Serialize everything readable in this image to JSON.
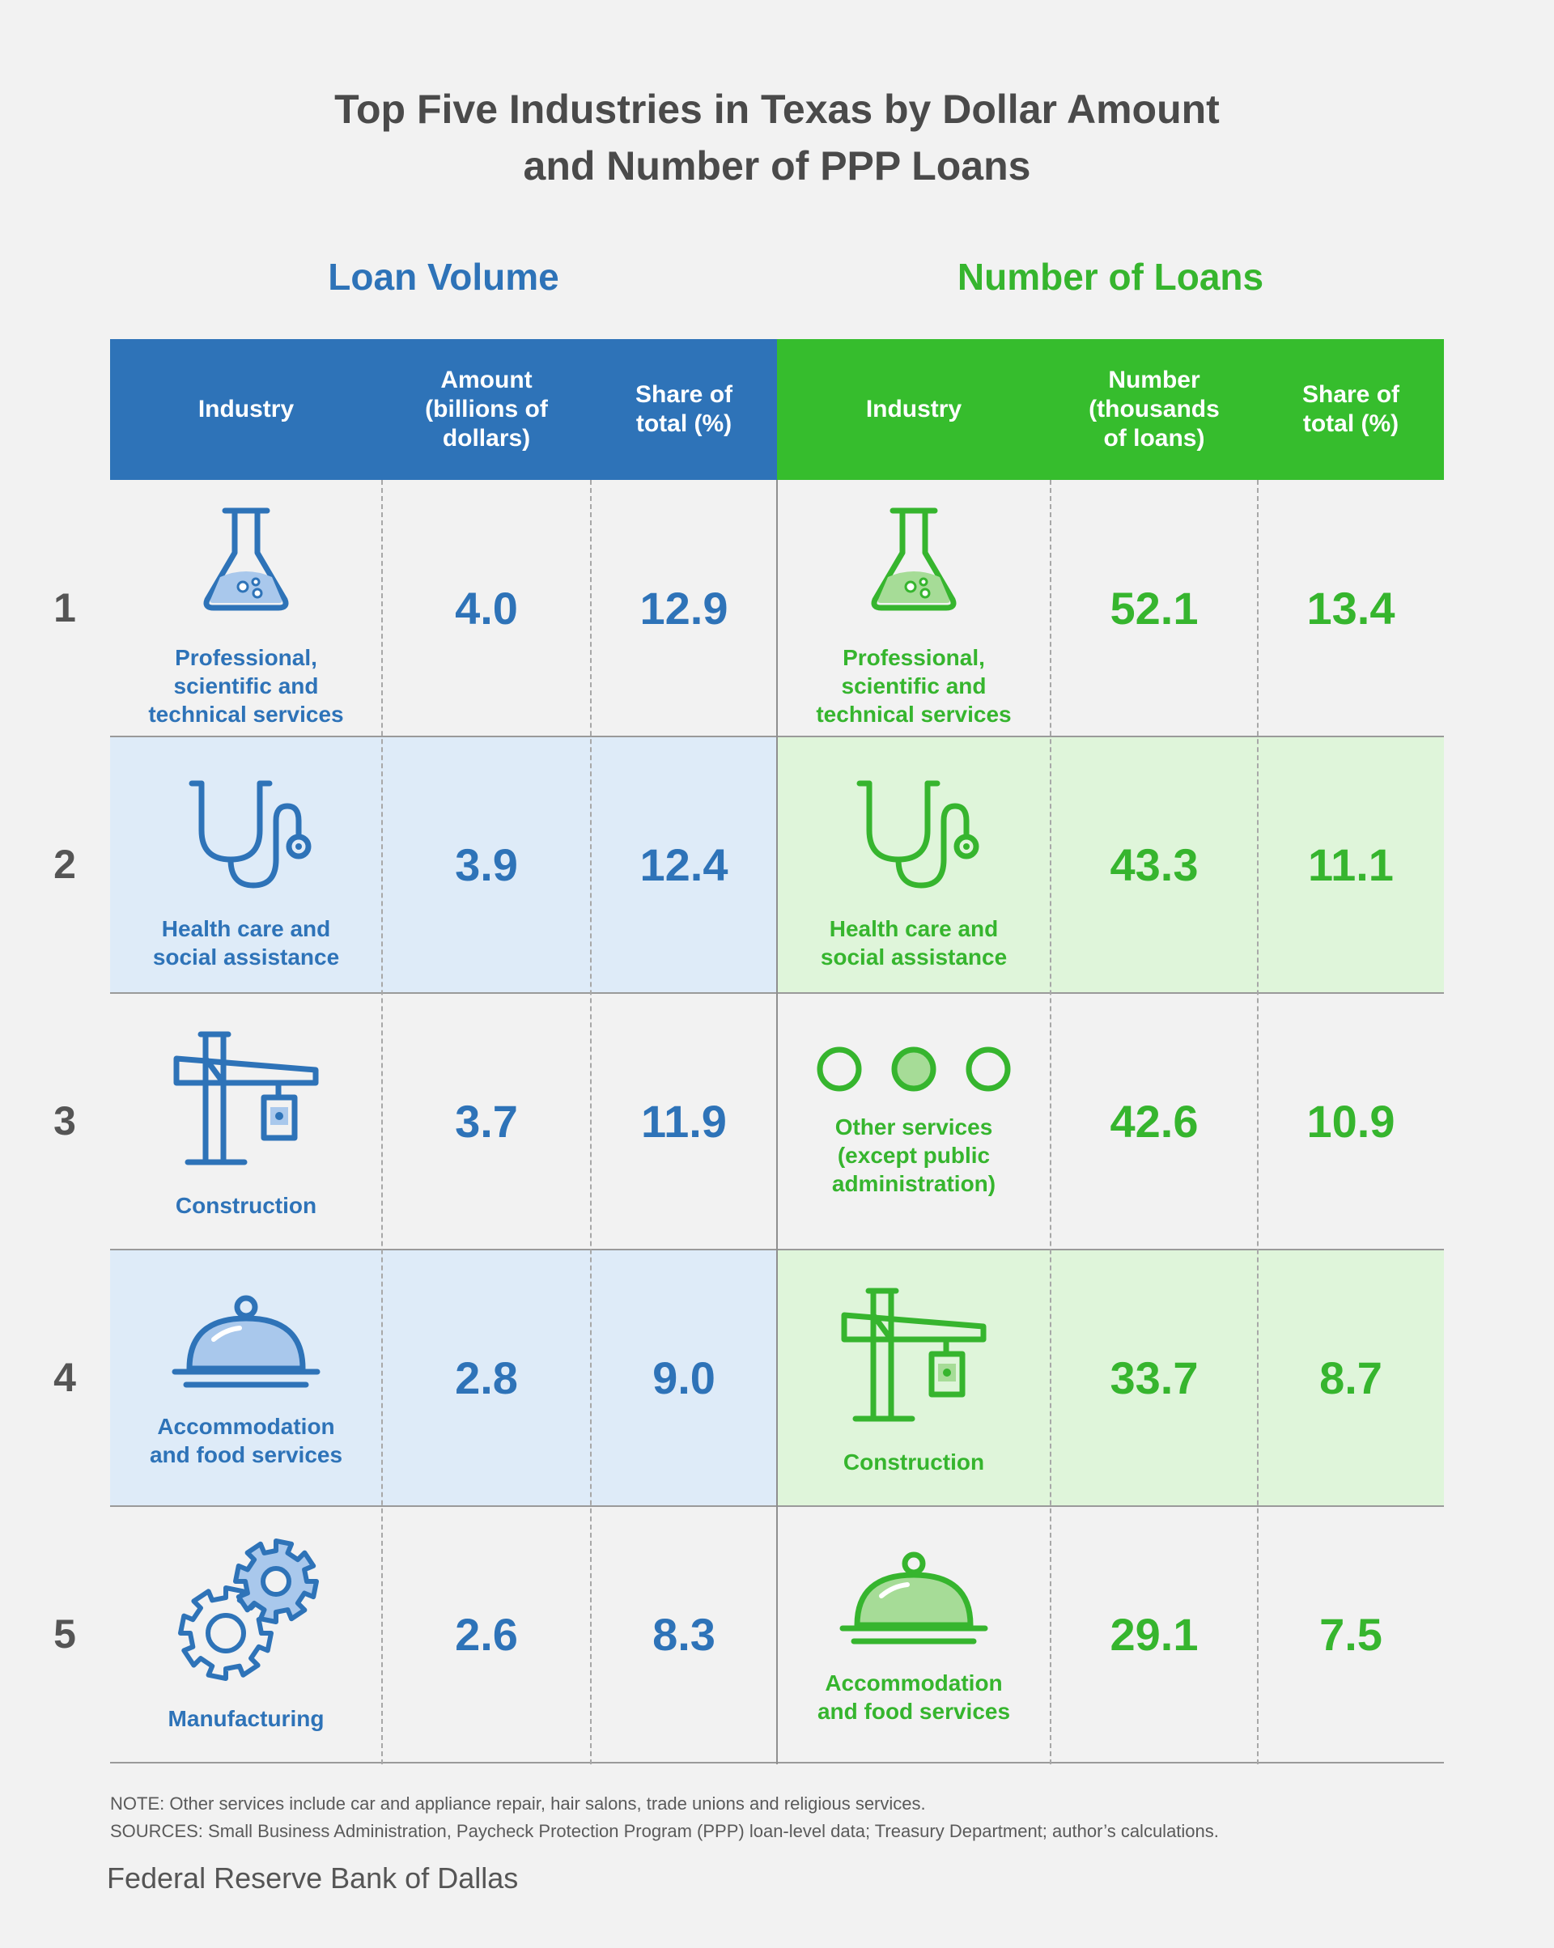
{
  "title_lines": [
    "Top Five Industries in Texas by Dollar Amount",
    "and Number of PPP Loans"
  ],
  "groups": {
    "volume": "Loan Volume",
    "number": "Number of Loans"
  },
  "headers": {
    "volume": [
      [
        "Industry"
      ],
      [
        "Amount",
        "(billions of",
        "dollars)"
      ],
      [
        "Share of",
        "total (%)"
      ]
    ],
    "number": [
      [
        "Industry"
      ],
      [
        "Number",
        "(thousands",
        "of loans)"
      ],
      [
        "Share of",
        "total (%)"
      ]
    ]
  },
  "colors": {
    "blue": "#2e73b8",
    "green": "#36b52e",
    "blue_row": "#deebf8",
    "green_row": "#dff5da"
  },
  "chart_data": {
    "type": "table",
    "ranks": [
      "1",
      "2",
      "3",
      "4",
      "5"
    ],
    "loan_volume": {
      "industries": [
        {
          "icon": "flask-icon",
          "label": [
            "Professional,",
            "scientific and",
            "technical services"
          ]
        },
        {
          "icon": "stethoscope-icon",
          "label": [
            "Health care and",
            "social assistance"
          ]
        },
        {
          "icon": "crane-icon",
          "label": [
            "Construction"
          ]
        },
        {
          "icon": "cloche-icon",
          "label": [
            "Accommodation",
            "and food services"
          ]
        },
        {
          "icon": "gears-icon",
          "label": [
            "Manufacturing"
          ]
        }
      ],
      "amount_billions": [
        "4.0",
        "3.9",
        "3.7",
        "2.8",
        "2.6"
      ],
      "share_pct": [
        "12.9",
        "12.4",
        "11.9",
        "9.0",
        "8.3"
      ]
    },
    "number_of_loans": {
      "industries": [
        {
          "icon": "flask-icon",
          "label": [
            "Professional,",
            "scientific and",
            "technical services"
          ]
        },
        {
          "icon": "stethoscope-icon",
          "label": [
            "Health care and",
            "social assistance"
          ]
        },
        {
          "icon": "dots-icon",
          "label": [
            "Other services",
            "(except public",
            "administration)"
          ]
        },
        {
          "icon": "crane-icon",
          "label": [
            "Construction"
          ]
        },
        {
          "icon": "cloche-icon",
          "label": [
            "Accommodation",
            "and food services"
          ]
        }
      ],
      "number_thousands": [
        "52.1",
        "43.3",
        "42.6",
        "33.7",
        "29.1"
      ],
      "share_pct": [
        "13.4",
        "11.1",
        "10.9",
        "8.7",
        "7.5"
      ]
    }
  },
  "note": "NOTE: Other services include car and appliance repair, hair salons, trade unions and religious services.",
  "sources": "SOURCES: Small Business Administration, Paycheck Protection Program (PPP) loan-level data; Treasury Department; author’s calculations.",
  "footer": "Federal Reserve Bank of Dallas"
}
